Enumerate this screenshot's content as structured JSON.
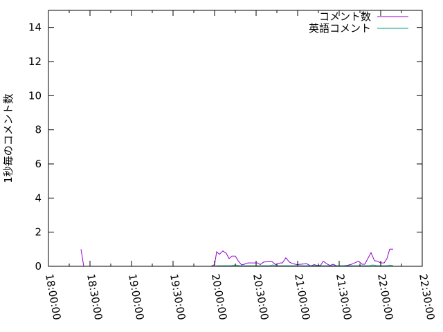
{
  "chart_data": {
    "type": "line",
    "title": "",
    "xlabel": "",
    "ylabel": "1秒毎のコメント数",
    "xlim": [
      "18:00:00",
      "22:30:00"
    ],
    "ylim": [
      0,
      15
    ],
    "x_ticks": [
      "18:00:00",
      "18:30:00",
      "19:00:00",
      "19:30:00",
      "20:00:00",
      "20:30:00",
      "21:00:00",
      "21:30:00",
      "22:00:00",
      "22:30:00"
    ],
    "y_ticks": [
      0,
      2,
      4,
      6,
      8,
      10,
      12,
      14
    ],
    "grid": false,
    "legend_placement": "top-right",
    "series": [
      {
        "name": "コメント数",
        "color": "#9400d3",
        "points": [
          [
            "18:23:30",
            1
          ],
          [
            "18:25:30",
            0
          ],
          [
            "19:57:30",
            0
          ],
          [
            "20:00:00",
            0.1
          ],
          [
            "20:01:30",
            0.85
          ],
          [
            "20:03:30",
            0.7
          ],
          [
            "20:06:00",
            0.9
          ],
          [
            "20:08:30",
            0.75
          ],
          [
            "20:10:30",
            0.45
          ],
          [
            "20:12:30",
            0.6
          ],
          [
            "20:15:00",
            0.6
          ],
          [
            "20:17:00",
            0.33
          ],
          [
            "20:19:30",
            0.08
          ],
          [
            "20:21:30",
            0.12
          ],
          [
            "20:24:00",
            0.2
          ],
          [
            "20:31:00",
            0.2
          ],
          [
            "20:33:00",
            0.1
          ],
          [
            "20:35:30",
            0.25
          ],
          [
            "20:41:30",
            0.27
          ],
          [
            "20:44:00",
            0.1
          ],
          [
            "20:47:30",
            0.2
          ],
          [
            "20:49:00",
            0.2
          ],
          [
            "20:51:30",
            0.5
          ],
          [
            "20:54:00",
            0.25
          ],
          [
            "20:56:30",
            0.15
          ],
          [
            "20:59:30",
            0.1
          ],
          [
            "21:06:30",
            0.15
          ],
          [
            "21:09:30",
            0.02
          ],
          [
            "21:12:00",
            0.1
          ],
          [
            "21:14:00",
            0.05
          ],
          [
            "21:16:30",
            0.05
          ],
          [
            "21:18:30",
            0.3
          ],
          [
            "21:21:30",
            0.12
          ],
          [
            "21:23:30",
            0.05
          ],
          [
            "21:25:30",
            0.12
          ],
          [
            "21:28:30",
            0.02
          ],
          [
            "21:30:30",
            0
          ],
          [
            "21:35:30",
            0.05
          ],
          [
            "21:39:00",
            0.12
          ],
          [
            "21:44:00",
            0.3
          ],
          [
            "21:46:30",
            0.12
          ],
          [
            "21:48:30",
            0.12
          ],
          [
            "21:53:00",
            0.8
          ],
          [
            "21:55:30",
            0.33
          ],
          [
            "21:57:30",
            0.3
          ],
          [
            "22:00:00",
            0.2
          ],
          [
            "22:02:30",
            0.2
          ],
          [
            "22:04:30",
            0.45
          ],
          [
            "22:06:30",
            1.0
          ],
          [
            "22:09:00",
            1.0
          ]
        ]
      },
      {
        "name": "英語コメント",
        "color": "#009e73",
        "points": [
          [
            "18:23:30",
            0
          ],
          [
            "20:00:00",
            0
          ],
          [
            "20:02:00",
            0.03
          ],
          [
            "20:12:00",
            0.03
          ],
          [
            "20:15:00",
            0.08
          ],
          [
            "20:18:00",
            0.03
          ],
          [
            "20:30:00",
            0.03
          ],
          [
            "20:40:00",
            0.03
          ],
          [
            "20:42:00",
            0.08
          ],
          [
            "20:44:00",
            0.03
          ],
          [
            "21:00:00",
            0.03
          ],
          [
            "21:30:00",
            0.03
          ],
          [
            "21:52:00",
            0.03
          ],
          [
            "21:54:00",
            0.08
          ],
          [
            "21:57:00",
            0.03
          ],
          [
            "22:05:00",
            0.03
          ],
          [
            "22:06:30",
            0.07
          ],
          [
            "22:09:00",
            0.03
          ]
        ]
      }
    ]
  }
}
